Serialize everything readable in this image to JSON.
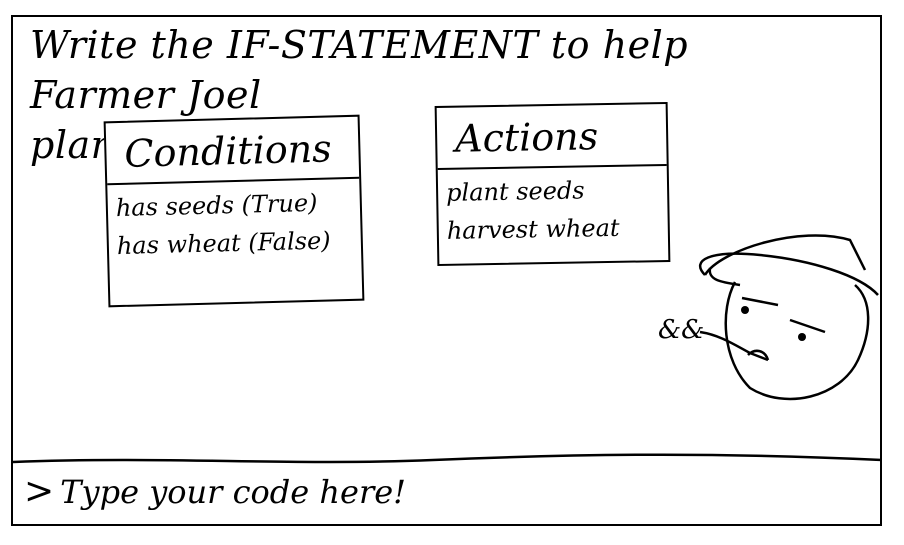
{
  "instructions": {
    "line1": "Write the IF-STATEMENT to help Farmer Joel",
    "line2": "plant his seeds!"
  },
  "conditions": {
    "title": "Conditions",
    "items": [
      "has seeds (True)",
      "has wheat (False)"
    ]
  },
  "actions": {
    "title": "Actions",
    "items": [
      "plant seeds",
      "harvest wheat"
    ]
  },
  "code_input": {
    "prompt": ">",
    "placeholder": "Type your code here!"
  },
  "farmer": {
    "icon": "farmer-joel-icon",
    "speech": "&&"
  }
}
